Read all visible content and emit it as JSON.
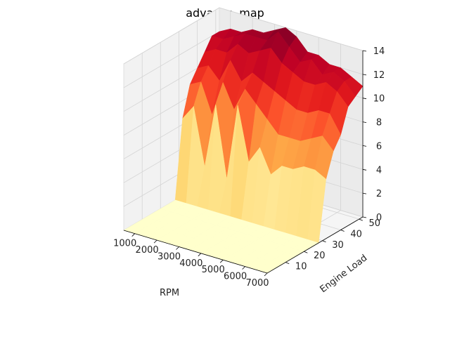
{
  "chart_data": {
    "type": "surface",
    "title": "advance_map",
    "xlabel": "RPM",
    "ylabel": "Engine Load",
    "zlabel": "",
    "x_ticks": [
      "1000",
      "2000",
      "3000",
      "4000",
      "5000",
      "6000",
      "7000"
    ],
    "y_ticks": [
      "10",
      "20",
      "30",
      "40",
      "50"
    ],
    "z_ticks": [
      "0",
      "2",
      "4",
      "6",
      "8",
      "10",
      "12",
      "14"
    ],
    "xlim": [
      500,
      7000
    ],
    "ylim": [
      0,
      52
    ],
    "zlim": [
      0,
      14
    ],
    "colormap": "YlOrRd",
    "grid": true,
    "x": [
      500,
      1000,
      1500,
      2000,
      2500,
      3000,
      3500,
      4000,
      4500,
      5000,
      5500,
      6000,
      6500,
      7000
    ],
    "y": [
      0,
      4,
      8,
      12,
      16,
      20,
      24,
      28,
      32,
      36,
      40,
      44,
      48,
      52
    ],
    "z": [
      [
        0.0,
        0.0,
        0.0,
        0.0,
        0.0,
        0.0,
        0.0,
        0.0,
        0.0,
        0.0,
        0.0,
        0.0,
        0.0,
        0.0
      ],
      [
        0.0,
        0.0,
        0.0,
        0.0,
        0.0,
        0.0,
        0.0,
        0.0,
        0.0,
        0.0,
        0.0,
        0.0,
        0.0,
        0.0
      ],
      [
        0.0,
        0.0,
        0.0,
        0.0,
        0.0,
        0.0,
        0.0,
        0.0,
        0.0,
        0.0,
        0.0,
        0.0,
        0.0,
        0.0
      ],
      [
        0.0,
        0.0,
        0.0,
        0.0,
        0.0,
        0.0,
        0.0,
        0.0,
        0.0,
        0.0,
        0.0,
        0.0,
        0.0,
        0.0
      ],
      [
        0.0,
        0.0,
        0.0,
        0.0,
        0.0,
        0.0,
        0.0,
        0.0,
        0.0,
        0.0,
        0.0,
        0.0,
        0.0,
        0.0
      ],
      [
        0.0,
        0.0,
        0.0,
        0.0,
        0.0,
        0.0,
        0.0,
        0.0,
        0.0,
        0.0,
        0.0,
        0.0,
        0.0,
        0.0
      ],
      [
        0.0,
        0.0,
        0.0,
        0.0,
        0.0,
        0.0,
        0.0,
        0.0,
        0.0,
        0.0,
        0.0,
        0.0,
        0.0,
        0.0
      ],
      [
        0.0,
        0.0,
        0.0,
        0.0,
        0.0,
        0.0,
        0.0,
        0.0,
        0.0,
        0.0,
        0.0,
        0.0,
        0.0,
        0.0
      ],
      [
        6.5,
        7.8,
        3.0,
        8.5,
        2.5,
        9.0,
        4.5,
        6.0,
        4.0,
        5.0,
        5.0,
        5.5,
        5.5,
        5.0
      ],
      [
        9.0,
        9.5,
        7.0,
        10.0,
        8.0,
        10.0,
        9.0,
        8.0,
        7.0,
        7.0,
        7.0,
        7.5,
        8.0,
        7.0
      ],
      [
        10.0,
        10.5,
        9.5,
        11.5,
        10.0,
        11.0,
        10.5,
        10.0,
        9.5,
        9.0,
        9.0,
        9.5,
        9.5,
        8.0
      ],
      [
        11.0,
        11.5,
        11.5,
        12.5,
        12.0,
        12.5,
        13.0,
        12.0,
        11.5,
        11.0,
        11.0,
        11.5,
        11.0,
        10.0
      ],
      [
        12.0,
        12.0,
        12.5,
        13.0,
        13.0,
        13.0,
        14.0,
        13.0,
        12.0,
        12.5,
        11.5,
        12.0,
        11.5,
        10.5
      ],
      [
        12.0,
        12.5,
        12.5,
        13.0,
        13.0,
        13.5,
        14.0,
        13.5,
        12.5,
        12.5,
        12.0,
        12.0,
        11.5,
        11.0
      ]
    ]
  }
}
